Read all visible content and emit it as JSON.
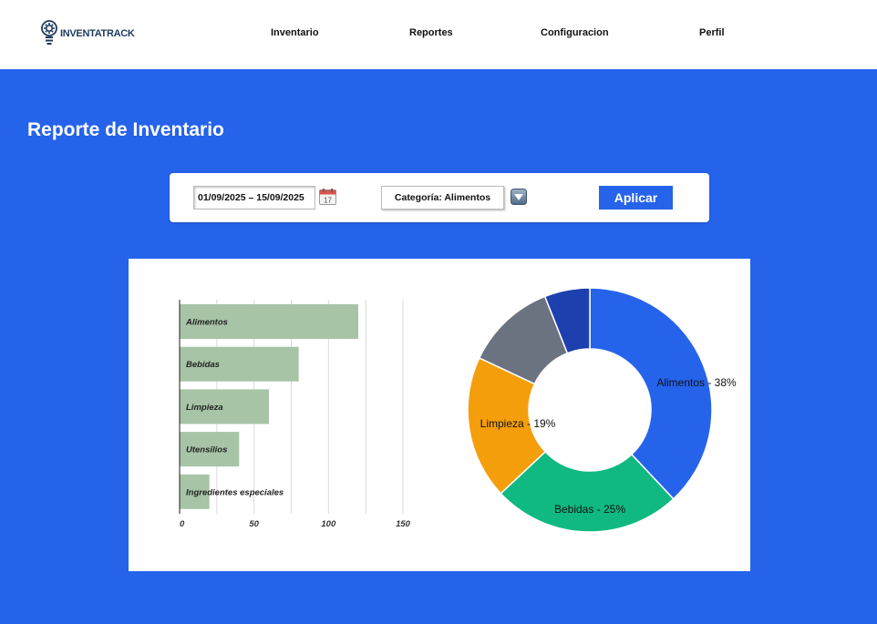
{
  "brand": {
    "name": "INVENTATRACK",
    "logo_icon": "lightbulb-gear-icon"
  },
  "nav": [
    {
      "label": "Inventario"
    },
    {
      "label": "Reportes"
    },
    {
      "label": "Configuracion"
    },
    {
      "label": "Perfil"
    }
  ],
  "page": {
    "title": "Reporte de Inventario"
  },
  "filters": {
    "date_range": "01/09/2025 – 15/09/2025",
    "calendar_icon": "calendar-icon",
    "calendar_day": "17",
    "category": "Categoría: Alimentos",
    "dropdown_icon": "chevron-down-icon",
    "apply_label": "Aplicar"
  },
  "colors": {
    "primary": "#2563eb",
    "bar": "#a7c4a7",
    "pie": [
      "#2563eb",
      "#10b981",
      "#f59e0b",
      "#6b7280",
      "#1e40af"
    ]
  },
  "chart_data": [
    {
      "type": "bar",
      "orientation": "horizontal",
      "categories": [
        "Alimentos",
        "Bebidas",
        "Limpieza",
        "Utensilios",
        "Ingredientes especiales"
      ],
      "values": [
        120,
        80,
        60,
        40,
        20
      ],
      "xlim": [
        0,
        150
      ],
      "x_ticks": [
        0,
        50,
        100,
        150
      ],
      "grid": true
    },
    {
      "type": "pie",
      "donut": true,
      "slices": [
        {
          "label": "Alimentos - 38%",
          "value": 38
        },
        {
          "label": "Bebidas - 25%",
          "value": 25
        },
        {
          "label": "Limpieza - 19%",
          "value": 19
        },
        {
          "label": "",
          "value": 12
        },
        {
          "label": "",
          "value": 6
        }
      ]
    }
  ]
}
